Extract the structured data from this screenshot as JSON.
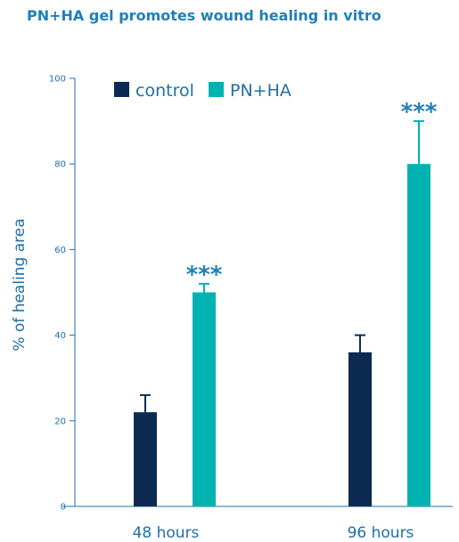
{
  "chart_data": {
    "type": "bar",
    "title": "PN+HA gel promotes wound healing in vitro",
    "ylabel": "% of healing area",
    "xlabel": "",
    "ylim": [
      0,
      100
    ],
    "yticks": [
      0,
      20,
      40,
      60,
      80,
      100
    ],
    "categories": [
      "48 hours",
      "96 hours"
    ],
    "series": [
      {
        "name": "control",
        "values": [
          22,
          36
        ],
        "errors": [
          4,
          4
        ],
        "color": "#0d2b52"
      },
      {
        "name": "PN+HA",
        "values": [
          50,
          80
        ],
        "errors": [
          2,
          10
        ],
        "color": "#00b3b0"
      }
    ],
    "significance": [
      {
        "category": "48 hours",
        "series": "PN+HA",
        "label": "***"
      },
      {
        "category": "96 hours",
        "series": "PN+HA",
        "label": "***"
      }
    ],
    "legend_position": "top-left",
    "grid": false
  }
}
